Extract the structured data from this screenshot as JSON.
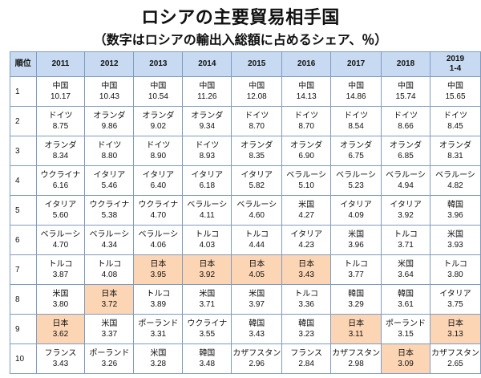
{
  "title": "ロシアの主要貿易相手国",
  "subtitle": "（数字はロシアの輸出入総額に占めるシェア、％）",
  "rank_header": "順位",
  "years": [
    "2011",
    "2012",
    "2013",
    "2014",
    "2015",
    "2016",
    "2017",
    "2018",
    "2019\n1-4"
  ],
  "highlight_country": "日本",
  "highlight_color": "#fcd5b4",
  "rows": [
    {
      "rank": "1",
      "cells": [
        {
          "country": "中国",
          "value": "10.17"
        },
        {
          "country": "中国",
          "value": "10.43"
        },
        {
          "country": "中国",
          "value": "10.54"
        },
        {
          "country": "中国",
          "value": "11.26"
        },
        {
          "country": "中国",
          "value": "12.08"
        },
        {
          "country": "中国",
          "value": "14.13"
        },
        {
          "country": "中国",
          "value": "14.86"
        },
        {
          "country": "中国",
          "value": "15.74"
        },
        {
          "country": "中国",
          "value": "15.65"
        }
      ]
    },
    {
      "rank": "2",
      "cells": [
        {
          "country": "ドイツ",
          "value": "8.75"
        },
        {
          "country": "オランダ",
          "value": "9.86"
        },
        {
          "country": "オランダ",
          "value": "9.02"
        },
        {
          "country": "オランダ",
          "value": "9.34"
        },
        {
          "country": "ドイツ",
          "value": "8.70"
        },
        {
          "country": "ドイツ",
          "value": "8.70"
        },
        {
          "country": "ドイツ",
          "value": "8.54"
        },
        {
          "country": "ドイツ",
          "value": "8.66"
        },
        {
          "country": "ドイツ",
          "value": "8.45"
        }
      ]
    },
    {
      "rank": "3",
      "cells": [
        {
          "country": "オランダ",
          "value": "8.34"
        },
        {
          "country": "ドイツ",
          "value": "8.80"
        },
        {
          "country": "ドイツ",
          "value": "8.90"
        },
        {
          "country": "ドイツ",
          "value": "8.93"
        },
        {
          "country": "オランダ",
          "value": "8.35"
        },
        {
          "country": "オランダ",
          "value": "6.90"
        },
        {
          "country": "オランダ",
          "value": "6.75"
        },
        {
          "country": "オランダ",
          "value": "6.85"
        },
        {
          "country": "オランダ",
          "value": "8.31"
        }
      ]
    },
    {
      "rank": "4",
      "cells": [
        {
          "country": "ウクライナ",
          "value": "6.16"
        },
        {
          "country": "イタリア",
          "value": "5.46"
        },
        {
          "country": "イタリア",
          "value": "6.40"
        },
        {
          "country": "イタリア",
          "value": "6.18"
        },
        {
          "country": "イタリア",
          "value": "5.82"
        },
        {
          "country": "ベラルーシ",
          "value": "5.10"
        },
        {
          "country": "ベラルーシ",
          "value": "5.23"
        },
        {
          "country": "ベラルーシ",
          "value": "4.94"
        },
        {
          "country": "ベラルーシ",
          "value": "4.82"
        }
      ]
    },
    {
      "rank": "5",
      "cells": [
        {
          "country": "イタリア",
          "value": "5.60"
        },
        {
          "country": "ウクライナ",
          "value": "5.38"
        },
        {
          "country": "ウクライナ",
          "value": "4.70"
        },
        {
          "country": "ベラルーシ",
          "value": "4.11"
        },
        {
          "country": "ベラルーシ",
          "value": "4.60"
        },
        {
          "country": "米国",
          "value": "4.27"
        },
        {
          "country": "イタリア",
          "value": "4.09"
        },
        {
          "country": "イタリア",
          "value": "3.92"
        },
        {
          "country": "韓国",
          "value": "3.96"
        }
      ]
    },
    {
      "rank": "6",
      "cells": [
        {
          "country": "ベラルーシ",
          "value": "4.70"
        },
        {
          "country": "ベラルーシ",
          "value": "4.34"
        },
        {
          "country": "ベラルーシ",
          "value": "4.06"
        },
        {
          "country": "トルコ",
          "value": "4.03"
        },
        {
          "country": "トルコ",
          "value": "4.44"
        },
        {
          "country": "イタリア",
          "value": "4.23"
        },
        {
          "country": "米国",
          "value": "3.96"
        },
        {
          "country": "トルコ",
          "value": "3.71"
        },
        {
          "country": "米国",
          "value": "3.93"
        }
      ]
    },
    {
      "rank": "7",
      "cells": [
        {
          "country": "トルコ",
          "value": "3.87"
        },
        {
          "country": "トルコ",
          "value": "4.08"
        },
        {
          "country": "日本",
          "value": "3.95"
        },
        {
          "country": "日本",
          "value": "3.92"
        },
        {
          "country": "日本",
          "value": "4.05"
        },
        {
          "country": "日本",
          "value": "3.43"
        },
        {
          "country": "トルコ",
          "value": "3.77"
        },
        {
          "country": "米国",
          "value": "3.64"
        },
        {
          "country": "トルコ",
          "value": "3.80"
        }
      ]
    },
    {
      "rank": "8",
      "cells": [
        {
          "country": "米国",
          "value": "3.80"
        },
        {
          "country": "日本",
          "value": "3.72"
        },
        {
          "country": "トルコ",
          "value": "3.89"
        },
        {
          "country": "米国",
          "value": "3.71"
        },
        {
          "country": "米国",
          "value": "3.97"
        },
        {
          "country": "トルコ",
          "value": "3.36"
        },
        {
          "country": "韓国",
          "value": "3.29"
        },
        {
          "country": "韓国",
          "value": "3.61"
        },
        {
          "country": "イタリア",
          "value": "3.75"
        }
      ]
    },
    {
      "rank": "9",
      "cells": [
        {
          "country": "日本",
          "value": "3.62"
        },
        {
          "country": "米国",
          "value": "3.37"
        },
        {
          "country": "ポーランド",
          "value": "3.31"
        },
        {
          "country": "ウクライナ",
          "value": "3.55"
        },
        {
          "country": "韓国",
          "value": "3.43"
        },
        {
          "country": "韓国",
          "value": "3.23"
        },
        {
          "country": "日本",
          "value": "3.11"
        },
        {
          "country": "ポーランド",
          "value": "3.15"
        },
        {
          "country": "日本",
          "value": "3.13"
        }
      ]
    },
    {
      "rank": "10",
      "cells": [
        {
          "country": "フランス",
          "value": "3.43"
        },
        {
          "country": "ポーランド",
          "value": "3.26"
        },
        {
          "country": "米国",
          "value": "3.28"
        },
        {
          "country": "韓国",
          "value": "3.48"
        },
        {
          "country": "カザフスタン",
          "value": "2.96"
        },
        {
          "country": "フランス",
          "value": "2.84"
        },
        {
          "country": "カザフスタン",
          "value": "2.98"
        },
        {
          "country": "日本",
          "value": "3.09"
        },
        {
          "country": "カザフスタン",
          "value": "2.65"
        }
      ]
    }
  ]
}
